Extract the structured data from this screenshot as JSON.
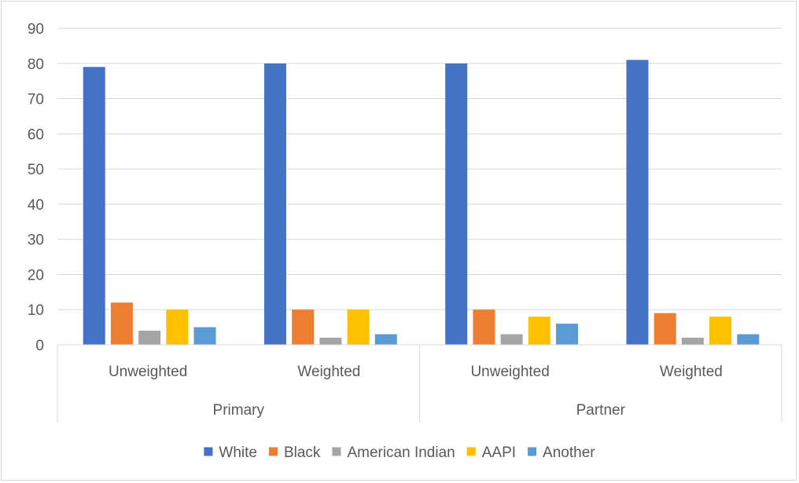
{
  "chart_data": {
    "type": "bar",
    "title": "",
    "xlabel": "",
    "ylabel": "",
    "ylim": [
      0,
      90
    ],
    "yticks": [
      0,
      10,
      20,
      30,
      40,
      50,
      60,
      70,
      80,
      90
    ],
    "grid": true,
    "legend_position": "bottom",
    "groups": [
      {
        "label": "Primary",
        "categories": [
          "Unweighted",
          "Weighted"
        ]
      },
      {
        "label": "Partner",
        "categories": [
          "Unweighted",
          "Weighted"
        ]
      }
    ],
    "categories": [
      "Unweighted",
      "Weighted",
      "Unweighted",
      "Weighted"
    ],
    "series": [
      {
        "name": "White",
        "color": "#4472c4",
        "values": [
          79,
          80,
          80,
          81
        ]
      },
      {
        "name": "Black",
        "color": "#ed7d31",
        "values": [
          12,
          10,
          10,
          9
        ]
      },
      {
        "name": "American Indian",
        "color": "#a5a5a5",
        "values": [
          4,
          2,
          3,
          2
        ]
      },
      {
        "name": "AAPI",
        "color": "#ffc000",
        "values": [
          10,
          10,
          8,
          8
        ]
      },
      {
        "name": "Another",
        "color": "#5b9bd5",
        "values": [
          5,
          3,
          6,
          3
        ]
      }
    ]
  }
}
